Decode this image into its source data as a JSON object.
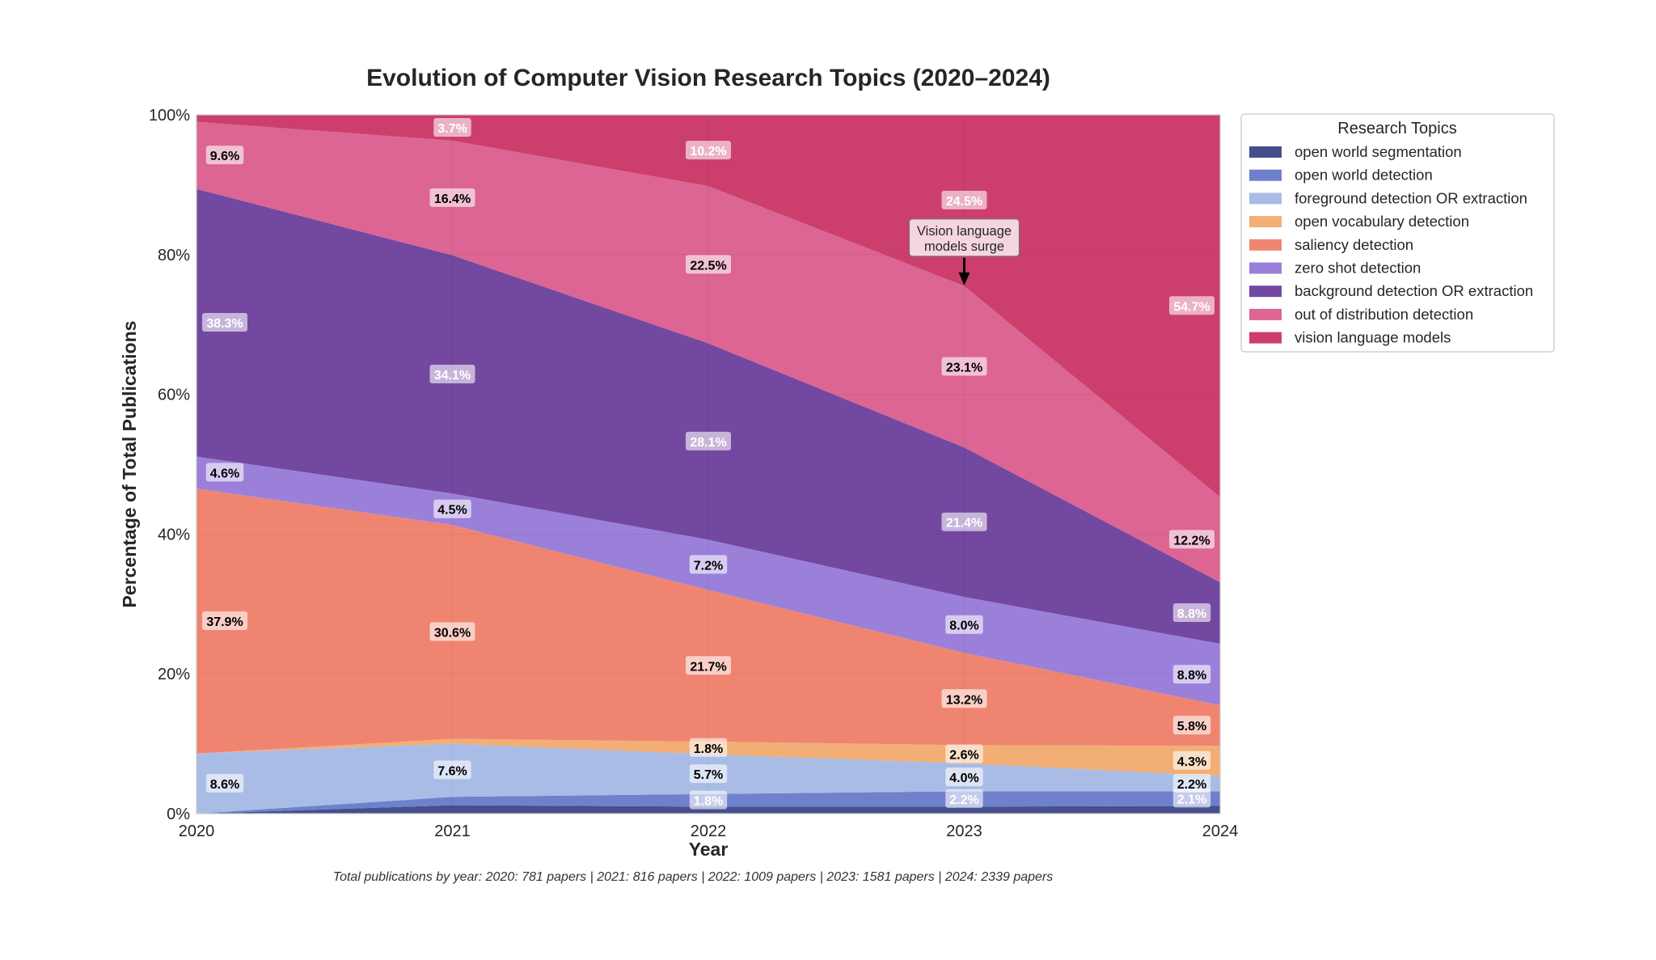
{
  "chart_data": {
    "type": "area",
    "stacked": true,
    "normalized": true,
    "title": "Evolution of Computer Vision Research Topics (2020–2024)",
    "xlabel": "Year",
    "ylabel": "Percentage of Total Publications",
    "x": [
      "2020",
      "2021",
      "2022",
      "2023",
      "2024"
    ],
    "ylim": [
      0,
      100
    ],
    "yticks": [
      "0%",
      "20%",
      "40%",
      "60%",
      "80%",
      "100%"
    ],
    "grid": true,
    "legend": {
      "title": "Research Topics",
      "placement": "outside-right"
    },
    "series": [
      {
        "name": "open world segmentation",
        "color": "#454f8d",
        "label_color": "#ffffff",
        "values": [
          0.0,
          1.2,
          1.0,
          1.0,
          1.1
        ]
      },
      {
        "name": "open world detection",
        "color": "#6f80cc",
        "label_color": "#ffffff",
        "values": [
          0.0,
          1.2,
          1.8,
          2.2,
          2.1
        ]
      },
      {
        "name": "foreground detection OR extraction",
        "color": "#a8bce6",
        "label_color": "#000000",
        "values": [
          8.6,
          7.6,
          5.7,
          4.0,
          2.2
        ]
      },
      {
        "name": "open vocabulary detection",
        "color": "#f2ae75",
        "label_color": "#000000",
        "values": [
          0.0,
          0.7,
          1.8,
          2.6,
          4.3
        ]
      },
      {
        "name": "saliency detection",
        "color": "#ef8571",
        "label_color": "#000000",
        "values": [
          37.9,
          30.6,
          21.7,
          13.2,
          5.8
        ]
      },
      {
        "name": "zero shot detection",
        "color": "#9b80da",
        "label_color": "#000000",
        "values": [
          4.6,
          4.5,
          7.2,
          8.0,
          8.8
        ]
      },
      {
        "name": "background detection OR extraction",
        "color": "#7348a1",
        "label_color": "#ffffff",
        "values": [
          38.3,
          34.1,
          28.1,
          21.4,
          8.8
        ]
      },
      {
        "name": "out of distribution detection",
        "color": "#dc6593",
        "label_color": "#000000",
        "values": [
          9.6,
          16.4,
          22.5,
          23.1,
          12.2
        ]
      },
      {
        "name": "vision language models",
        "color": "#cc3f6d",
        "label_color": "#ffffff",
        "values": [
          1.0,
          3.7,
          10.2,
          24.5,
          54.7
        ]
      }
    ],
    "annotation": {
      "text_line1": "Vision language",
      "text_line2": "models surge",
      "x": "2023",
      "y": 75.6
    },
    "footnote": "Total publications by year: 2020: 781 papers | 2021: 816 papers | 2022: 1009 papers | 2023: 1581 papers | 2024: 2339 papers"
  }
}
